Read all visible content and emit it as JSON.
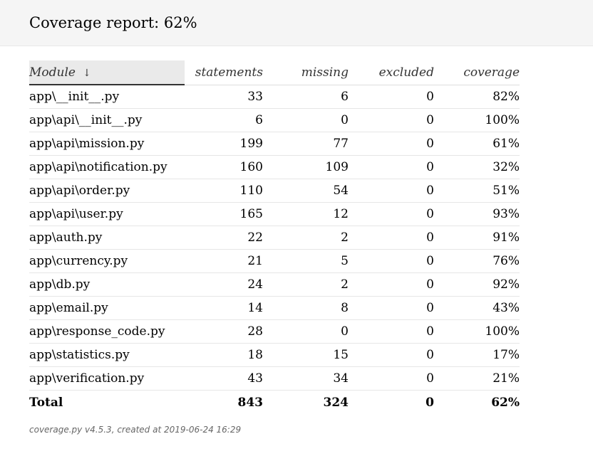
{
  "header": {
    "title": "Coverage report: 62%"
  },
  "table": {
    "columns": {
      "module": "Module",
      "sort_indicator": "↓",
      "statements": "statements",
      "missing": "missing",
      "excluded": "excluded",
      "coverage": "coverage"
    },
    "rows": [
      {
        "module": "app\\__init__.py",
        "statements": "33",
        "missing": "6",
        "excluded": "0",
        "coverage": "82%"
      },
      {
        "module": "app\\api\\__init__.py",
        "statements": "6",
        "missing": "0",
        "excluded": "0",
        "coverage": "100%"
      },
      {
        "module": "app\\api\\mission.py",
        "statements": "199",
        "missing": "77",
        "excluded": "0",
        "coverage": "61%"
      },
      {
        "module": "app\\api\\notification.py",
        "statements": "160",
        "missing": "109",
        "excluded": "0",
        "coverage": "32%"
      },
      {
        "module": "app\\api\\order.py",
        "statements": "110",
        "missing": "54",
        "excluded": "0",
        "coverage": "51%"
      },
      {
        "module": "app\\api\\user.py",
        "statements": "165",
        "missing": "12",
        "excluded": "0",
        "coverage": "93%"
      },
      {
        "module": "app\\auth.py",
        "statements": "22",
        "missing": "2",
        "excluded": "0",
        "coverage": "91%"
      },
      {
        "module": "app\\currency.py",
        "statements": "21",
        "missing": "5",
        "excluded": "0",
        "coverage": "76%"
      },
      {
        "module": "app\\db.py",
        "statements": "24",
        "missing": "2",
        "excluded": "0",
        "coverage": "92%"
      },
      {
        "module": "app\\email.py",
        "statements": "14",
        "missing": "8",
        "excluded": "0",
        "coverage": "43%"
      },
      {
        "module": "app\\response_code.py",
        "statements": "28",
        "missing": "0",
        "excluded": "0",
        "coverage": "100%"
      },
      {
        "module": "app\\statistics.py",
        "statements": "18",
        "missing": "15",
        "excluded": "0",
        "coverage": "17%"
      },
      {
        "module": "app\\verification.py",
        "statements": "43",
        "missing": "34",
        "excluded": "0",
        "coverage": "21%"
      }
    ],
    "total": {
      "label": "Total",
      "statements": "843",
      "missing": "324",
      "excluded": "0",
      "coverage": "62%"
    }
  },
  "footer": {
    "text": "coverage.py v4.5.3, created at 2019-06-24 16:29"
  }
}
